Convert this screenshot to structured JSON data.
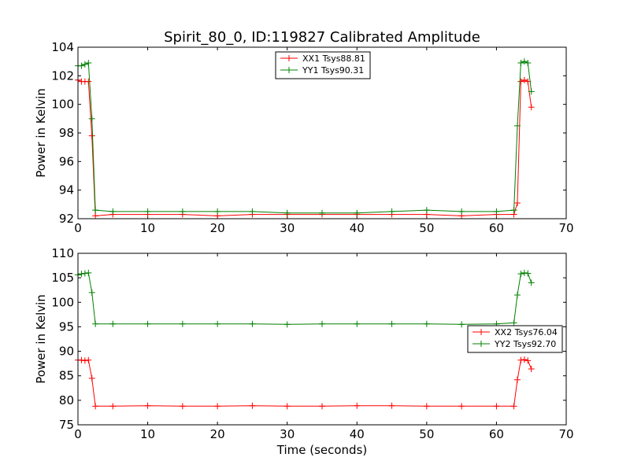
{
  "chart_data": [
    {
      "type": "line",
      "title": "Spirit_80_0, ID:119827 Calibrated Amplitude",
      "xlabel": "",
      "ylabel": "Power in Kelvin",
      "xlim": [
        0,
        70
      ],
      "ylim": [
        92,
        104
      ],
      "xticks": [
        "0",
        "10",
        "20",
        "30",
        "40",
        "50",
        "60",
        "70"
      ],
      "yticks": [
        "92",
        "94",
        "96",
        "98",
        "100",
        "102",
        "104"
      ],
      "legend_position": "upper-center",
      "series": [
        {
          "name": "XX1 Tsys88.81",
          "color": "#ff0000",
          "x": [
            0.0,
            0.5,
            1.0,
            1.5,
            2.0,
            2.5,
            5.0,
            10.0,
            15.0,
            20.0,
            25.0,
            30.0,
            35.0,
            40.0,
            45.0,
            50.0,
            55.0,
            60.0,
            62.5,
            63.0,
            63.5,
            64.0,
            64.5,
            65.0
          ],
          "y": [
            101.7,
            101.6,
            101.6,
            101.6,
            97.8,
            92.2,
            92.3,
            92.3,
            92.3,
            92.2,
            92.3,
            92.3,
            92.3,
            92.3,
            92.3,
            92.3,
            92.2,
            92.3,
            92.3,
            93.1,
            101.6,
            101.7,
            101.6,
            99.8
          ]
        },
        {
          "name": "YY1 Tsys90.31",
          "color": "#008000",
          "x": [
            0.0,
            0.5,
            1.0,
            1.5,
            2.0,
            2.5,
            5.0,
            10.0,
            15.0,
            20.0,
            25.0,
            30.0,
            35.0,
            40.0,
            45.0,
            50.0,
            55.0,
            60.0,
            62.5,
            63.0,
            63.5,
            64.0,
            64.5,
            65.0
          ],
          "y": [
            102.7,
            102.7,
            102.8,
            102.9,
            99.0,
            92.6,
            92.5,
            92.5,
            92.5,
            92.5,
            92.5,
            92.4,
            92.4,
            92.4,
            92.5,
            92.6,
            92.5,
            92.5,
            92.6,
            98.5,
            102.9,
            103.0,
            102.9,
            100.9
          ]
        }
      ]
    },
    {
      "type": "line",
      "title": "",
      "xlabel": "Time (seconds)",
      "ylabel": "Power in Kelvin",
      "xlim": [
        0,
        70
      ],
      "ylim": [
        75,
        110
      ],
      "xticks": [
        "0",
        "10",
        "20",
        "30",
        "40",
        "50",
        "60",
        "70"
      ],
      "yticks": [
        "75",
        "80",
        "85",
        "90",
        "95",
        "100",
        "105",
        "110"
      ],
      "legend_position": "right",
      "series": [
        {
          "name": "XX2 Tsys76.04",
          "color": "#ff0000",
          "x": [
            0.0,
            0.5,
            1.0,
            1.5,
            2.0,
            2.5,
            5.0,
            10.0,
            15.0,
            20.0,
            25.0,
            30.0,
            35.0,
            40.0,
            45.0,
            50.0,
            55.0,
            60.0,
            62.5,
            63.0,
            63.5,
            64.0,
            64.5,
            65.0
          ],
          "y": [
            88.2,
            88.2,
            88.1,
            88.2,
            84.5,
            78.8,
            78.8,
            78.9,
            78.8,
            78.8,
            78.9,
            78.8,
            78.8,
            78.9,
            78.9,
            78.8,
            78.8,
            78.8,
            78.8,
            84.2,
            88.2,
            88.3,
            88.1,
            86.4
          ]
        },
        {
          "name": "YY2 Tsys92.70",
          "color": "#008000",
          "x": [
            0.0,
            0.5,
            1.0,
            1.5,
            2.0,
            2.5,
            5.0,
            10.0,
            15.0,
            20.0,
            25.0,
            30.0,
            35.0,
            40.0,
            45.0,
            50.0,
            55.0,
            60.0,
            62.5,
            63.0,
            63.5,
            64.0,
            64.5,
            65.0
          ],
          "y": [
            105.6,
            105.8,
            105.9,
            106.0,
            102.0,
            95.6,
            95.6,
            95.6,
            95.6,
            95.6,
            95.6,
            95.5,
            95.6,
            95.6,
            95.6,
            95.6,
            95.5,
            95.6,
            95.8,
            101.5,
            105.8,
            106.0,
            105.9,
            104.0
          ]
        }
      ]
    }
  ]
}
